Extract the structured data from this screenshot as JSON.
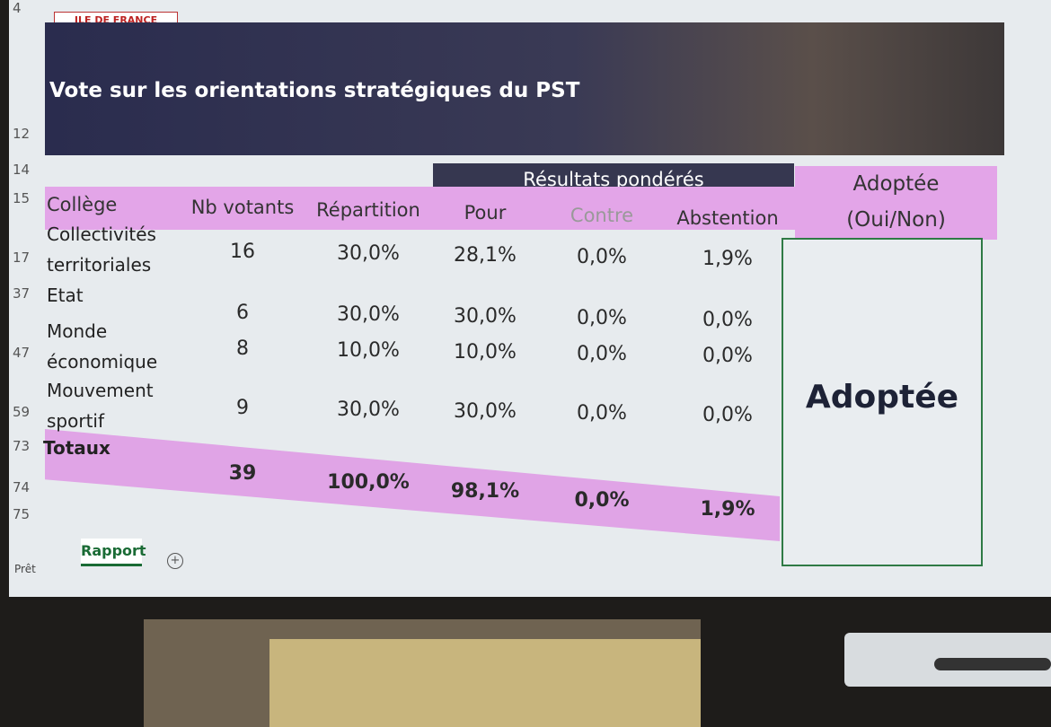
{
  "header": {
    "logo_label": "ILE DE FRANCE",
    "title": "Vote sur les orientations stratégiques du PST"
  },
  "row_numbers": [
    "4",
    "12",
    "14",
    "15",
    "17",
    "37",
    "47",
    "59",
    "73",
    "74",
    "75"
  ],
  "table": {
    "group_header": "Résultats pondérés",
    "result_header": [
      "Adoptée",
      "(Oui/Non)"
    ],
    "columns": [
      "Collège",
      "Nb votants",
      "Répartition",
      "Pour",
      "Contre",
      "Abstention"
    ],
    "rows": [
      [
        "Collectivités territoriales",
        "16",
        "30,0%",
        "28,1%",
        "0,0%",
        "1,9%"
      ],
      [
        "Etat",
        "6",
        "30,0%",
        "30,0%",
        "0,0%",
        "0,0%"
      ],
      [
        "Monde économique",
        "8",
        "10,0%",
        "10,0%",
        "0,0%",
        "0,0%"
      ],
      [
        "Mouvement sportif",
        "9",
        "30,0%",
        "30,0%",
        "0,0%",
        "0,0%"
      ]
    ],
    "totals": [
      "Totaux",
      "39",
      "100,0%",
      "98,1%",
      "0,0%",
      "1,9%"
    ],
    "result": "Adoptée"
  },
  "sheet_tab": "Rapport",
  "status": "Prêt"
}
